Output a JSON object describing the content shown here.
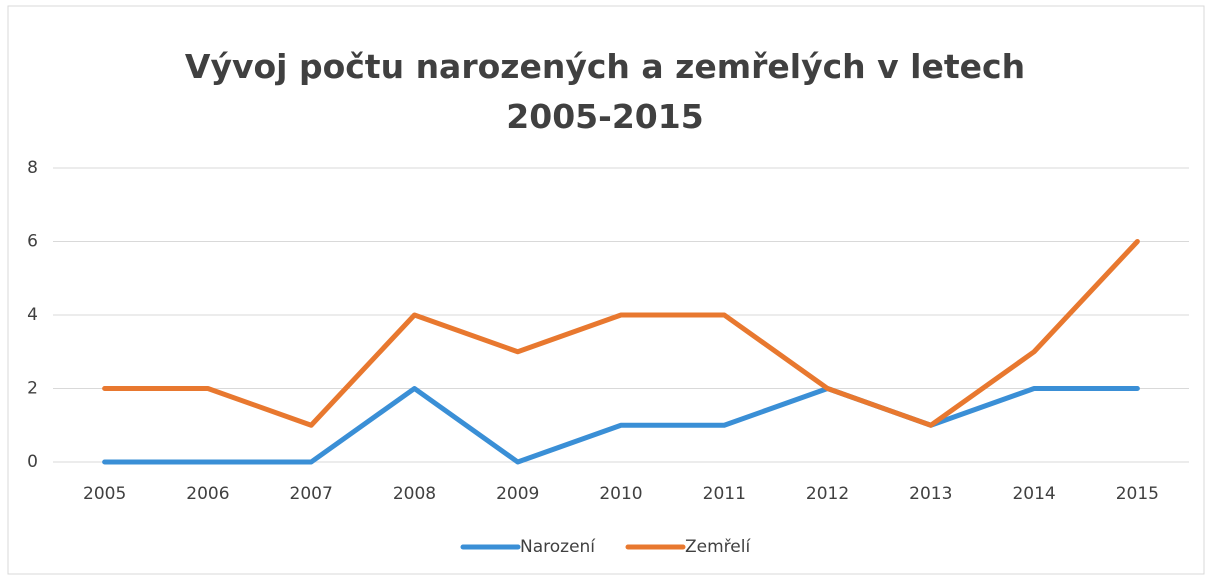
{
  "chart_data": {
    "type": "line",
    "title": "Vývoj počtu narozených a zemřelých v letech 2005-2015",
    "categories": [
      "2005",
      "2006",
      "2007",
      "2008",
      "2009",
      "2010",
      "2011",
      "2012",
      "2013",
      "2014",
      "2015"
    ],
    "series": [
      {
        "name": "Narození",
        "color": "#3a8fd6",
        "values": [
          0,
          0,
          0,
          2,
          0,
          1,
          1,
          2,
          1,
          2,
          2
        ]
      },
      {
        "name": "Zemřelí",
        "color": "#e8782f",
        "values": [
          2,
          2,
          1,
          4,
          3,
          4,
          4,
          2,
          1,
          3,
          6
        ]
      }
    ],
    "ylim": [
      0,
      8
    ],
    "yticks": [
      0,
      2,
      4,
      6,
      8
    ],
    "grid": true,
    "legend": "bottom"
  }
}
